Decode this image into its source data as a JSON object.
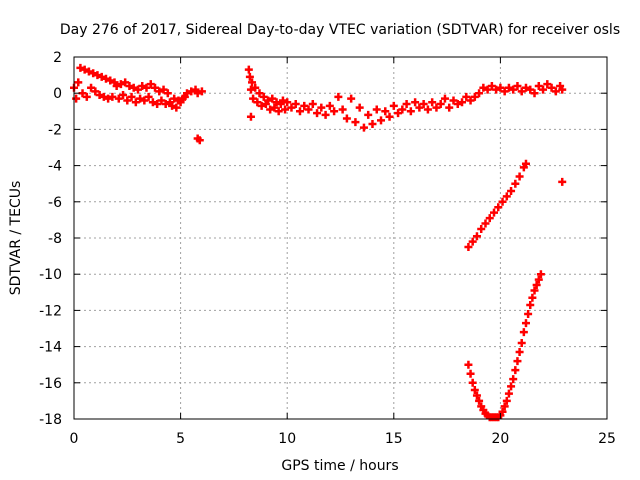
{
  "chart_data": {
    "type": "scatter",
    "title": "Day 276 of 2017, Sidereal Day-to-day VTEC variation (SDTVAR) for receiver osls",
    "xlabel": "GPS time / hours",
    "ylabel": "SDTVAR / TECUs",
    "xlim": [
      0,
      25
    ],
    "ylim": [
      -18,
      2
    ],
    "xticks": [
      0,
      5,
      10,
      15,
      20,
      25
    ],
    "yticks": [
      -18,
      -16,
      -14,
      -12,
      -10,
      -8,
      -6,
      -4,
      -2,
      0,
      2
    ],
    "grid": true,
    "legend": "none",
    "marker": "plus",
    "color": "#ff0000",
    "series": [
      {
        "values": [
          [
            0.0,
            0.3
          ],
          [
            0.1,
            -0.3
          ],
          [
            0.2,
            0.6
          ],
          [
            0.3,
            1.4
          ],
          [
            0.4,
            0.0
          ],
          [
            0.5,
            1.3
          ],
          [
            0.6,
            -0.2
          ],
          [
            0.7,
            1.2
          ],
          [
            0.8,
            0.3
          ],
          [
            0.9,
            1.1
          ],
          [
            1.0,
            0.1
          ],
          [
            1.1,
            1.0
          ],
          [
            1.2,
            -0.1
          ],
          [
            1.3,
            0.9
          ],
          [
            1.4,
            -0.2
          ],
          [
            1.5,
            0.8
          ],
          [
            1.6,
            -0.3
          ],
          [
            1.7,
            0.7
          ],
          [
            1.8,
            -0.2
          ],
          [
            1.9,
            0.6
          ],
          [
            2.0,
            0.4
          ],
          [
            2.1,
            -0.3
          ],
          [
            2.2,
            0.5
          ],
          [
            2.3,
            -0.1
          ],
          [
            2.4,
            0.6
          ],
          [
            2.5,
            -0.4
          ],
          [
            2.6,
            0.4
          ],
          [
            2.7,
            -0.2
          ],
          [
            2.8,
            0.3
          ],
          [
            2.9,
            -0.5
          ],
          [
            3.0,
            0.2
          ],
          [
            3.1,
            -0.3
          ],
          [
            3.2,
            0.4
          ],
          [
            3.3,
            -0.4
          ],
          [
            3.4,
            0.3
          ],
          [
            3.5,
            -0.2
          ],
          [
            3.6,
            0.5
          ],
          [
            3.7,
            -0.5
          ],
          [
            3.8,
            0.3
          ],
          [
            3.9,
            -0.6
          ],
          [
            4.0,
            0.1
          ],
          [
            4.1,
            -0.4
          ],
          [
            4.2,
            0.2
          ],
          [
            4.3,
            -0.6
          ],
          [
            4.4,
            0.0
          ],
          [
            4.5,
            -0.5
          ],
          [
            4.6,
            -0.7
          ],
          [
            4.7,
            -0.3
          ],
          [
            4.8,
            -0.8
          ],
          [
            4.9,
            -0.4
          ],
          [
            5.0,
            -0.5
          ],
          [
            5.1,
            -0.3
          ],
          [
            5.2,
            -0.2
          ],
          [
            5.3,
            0.0
          ],
          [
            5.5,
            0.1
          ],
          [
            5.7,
            0.2
          ],
          [
            5.8,
            0.0
          ],
          [
            6.0,
            0.1
          ],
          [
            5.8,
            -2.5
          ],
          [
            5.9,
            -2.6
          ],
          [
            8.2,
            1.3
          ],
          [
            8.25,
            0.9
          ],
          [
            8.3,
            0.2
          ],
          [
            8.3,
            -1.3
          ],
          [
            8.35,
            0.6
          ],
          [
            8.4,
            -0.3
          ],
          [
            8.5,
            0.3
          ],
          [
            8.6,
            -0.5
          ],
          [
            8.7,
            0.0
          ],
          [
            8.8,
            -0.7
          ],
          [
            8.9,
            -0.2
          ],
          [
            9.0,
            -0.6
          ],
          [
            9.1,
            -0.4
          ],
          [
            9.2,
            -0.9
          ],
          [
            9.3,
            -0.3
          ],
          [
            9.4,
            -0.8
          ],
          [
            9.5,
            -0.5
          ],
          [
            9.6,
            -1.0
          ],
          [
            9.7,
            -0.6
          ],
          [
            9.8,
            -0.4
          ],
          [
            9.9,
            -0.9
          ],
          [
            10.0,
            -0.5
          ],
          [
            10.2,
            -0.8
          ],
          [
            10.4,
            -0.6
          ],
          [
            10.6,
            -1.0
          ],
          [
            10.8,
            -0.7
          ],
          [
            11.0,
            -0.9
          ],
          [
            11.2,
            -0.6
          ],
          [
            11.4,
            -1.1
          ],
          [
            11.6,
            -0.8
          ],
          [
            11.8,
            -1.2
          ],
          [
            12.0,
            -0.7
          ],
          [
            12.2,
            -1.0
          ],
          [
            12.4,
            -0.2
          ],
          [
            12.6,
            -0.9
          ],
          [
            12.8,
            -1.4
          ],
          [
            13.0,
            -0.3
          ],
          [
            13.2,
            -1.6
          ],
          [
            13.4,
            -0.8
          ],
          [
            13.6,
            -1.9
          ],
          [
            13.8,
            -1.2
          ],
          [
            14.0,
            -1.7
          ],
          [
            14.2,
            -0.9
          ],
          [
            14.4,
            -1.5
          ],
          [
            14.6,
            -1.0
          ],
          [
            14.8,
            -1.3
          ],
          [
            15.0,
            -0.7
          ],
          [
            15.2,
            -1.1
          ],
          [
            15.4,
            -0.9
          ],
          [
            15.6,
            -0.6
          ],
          [
            15.8,
            -1.0
          ],
          [
            16.0,
            -0.5
          ],
          [
            16.2,
            -0.8
          ],
          [
            16.4,
            -0.6
          ],
          [
            16.6,
            -0.9
          ],
          [
            16.8,
            -0.5
          ],
          [
            17.0,
            -0.8
          ],
          [
            17.2,
            -0.6
          ],
          [
            17.4,
            -0.3
          ],
          [
            17.6,
            -0.8
          ],
          [
            17.8,
            -0.4
          ],
          [
            18.0,
            -0.6
          ],
          [
            18.2,
            -0.5
          ],
          [
            18.4,
            -0.2
          ],
          [
            18.6,
            -0.4
          ],
          [
            18.8,
            -0.2
          ],
          [
            19.0,
            0.0
          ],
          [
            19.2,
            0.3
          ],
          [
            19.4,
            0.2
          ],
          [
            19.6,
            0.4
          ],
          [
            19.8,
            0.2
          ],
          [
            20.0,
            0.3
          ],
          [
            20.2,
            0.1
          ],
          [
            20.4,
            0.3
          ],
          [
            20.6,
            0.2
          ],
          [
            20.8,
            0.4
          ],
          [
            21.0,
            0.1
          ],
          [
            21.2,
            0.3
          ],
          [
            21.4,
            0.2
          ],
          [
            21.6,
            0.0
          ],
          [
            21.8,
            0.4
          ],
          [
            22.0,
            0.2
          ],
          [
            22.2,
            0.5
          ],
          [
            22.4,
            0.3
          ],
          [
            22.6,
            0.1
          ],
          [
            22.8,
            0.4
          ],
          [
            22.9,
            0.2
          ],
          [
            18.5,
            -8.5
          ],
          [
            18.7,
            -8.2
          ],
          [
            18.9,
            -7.9
          ],
          [
            19.1,
            -7.5
          ],
          [
            19.3,
            -7.2
          ],
          [
            19.5,
            -6.9
          ],
          [
            19.7,
            -6.6
          ],
          [
            19.9,
            -6.3
          ],
          [
            20.1,
            -6.0
          ],
          [
            20.3,
            -5.7
          ],
          [
            20.5,
            -5.4
          ],
          [
            20.7,
            -5.0
          ],
          [
            20.9,
            -4.6
          ],
          [
            21.1,
            -4.1
          ],
          [
            21.2,
            -3.9
          ],
          [
            22.9,
            -4.9
          ],
          [
            18.5,
            -15.0
          ],
          [
            18.6,
            -15.5
          ],
          [
            18.7,
            -16.0
          ],
          [
            18.8,
            -16.4
          ],
          [
            18.9,
            -16.7
          ],
          [
            19.0,
            -17.0
          ],
          [
            19.1,
            -17.3
          ],
          [
            19.2,
            -17.5
          ],
          [
            19.3,
            -17.7
          ],
          [
            19.4,
            -17.8
          ],
          [
            19.5,
            -17.9
          ],
          [
            19.6,
            -17.9
          ],
          [
            19.7,
            -17.9
          ],
          [
            19.8,
            -17.9
          ],
          [
            19.9,
            -17.9
          ],
          [
            20.0,
            -17.8
          ],
          [
            20.1,
            -17.6
          ],
          [
            20.2,
            -17.3
          ],
          [
            20.3,
            -17.0
          ],
          [
            20.4,
            -16.6
          ],
          [
            20.5,
            -16.2
          ],
          [
            20.6,
            -15.8
          ],
          [
            20.7,
            -15.3
          ],
          [
            20.8,
            -14.8
          ],
          [
            20.9,
            -14.3
          ],
          [
            21.0,
            -13.8
          ],
          [
            21.1,
            -13.2
          ],
          [
            21.2,
            -12.7
          ],
          [
            21.3,
            -12.2
          ],
          [
            21.4,
            -11.7
          ],
          [
            21.5,
            -11.3
          ],
          [
            21.6,
            -10.9
          ],
          [
            21.7,
            -10.6
          ],
          [
            21.8,
            -10.3
          ],
          [
            21.9,
            -10.0
          ]
        ]
      }
    ]
  }
}
